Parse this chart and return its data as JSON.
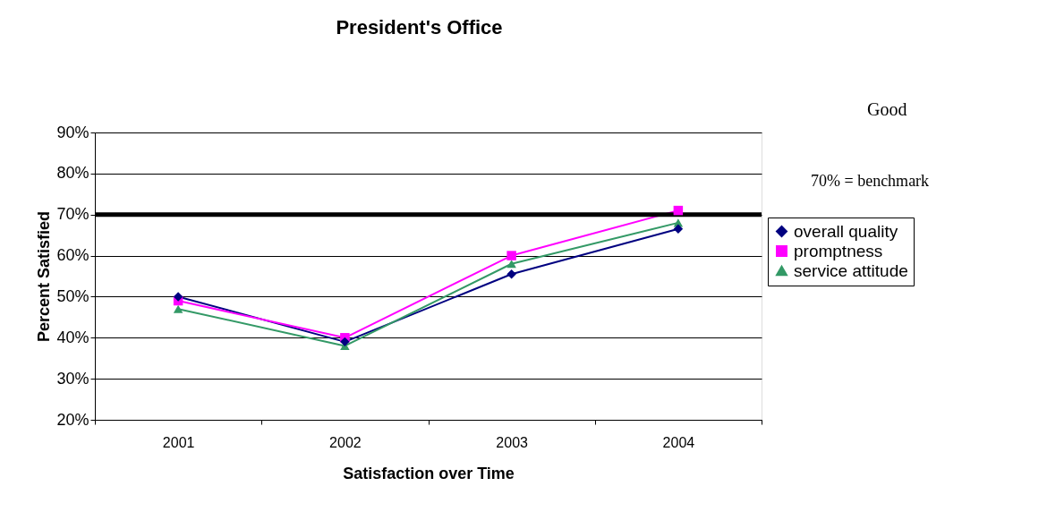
{
  "chart_data": {
    "type": "line",
    "title": "President's Office",
    "xlabel": "Satisfaction over Time",
    "ylabel": "Percent Satisfied",
    "categories": [
      "2001",
      "2002",
      "2003",
      "2004"
    ],
    "series": [
      {
        "name": "overall quality",
        "color": "#000080",
        "marker": "diamond",
        "values": [
          50,
          39,
          55.5,
          66.5
        ]
      },
      {
        "name": "promptness",
        "color": "#ff00ff",
        "marker": "square",
        "values": [
          49,
          40,
          60,
          71
        ]
      },
      {
        "name": "service attitude",
        "color": "#339966",
        "marker": "triangle",
        "values": [
          47,
          38,
          58,
          68
        ]
      }
    ],
    "ylim": [
      20,
      90
    ],
    "yticks": [
      {
        "value": 20,
        "label": "20%"
      },
      {
        "value": 30,
        "label": "30%"
      },
      {
        "value": 40,
        "label": "40%"
      },
      {
        "value": 50,
        "label": "50%"
      },
      {
        "value": 60,
        "label": "60%"
      },
      {
        "value": 70,
        "label": "70%"
      },
      {
        "value": 80,
        "label": "80%"
      },
      {
        "value": 90,
        "label": "90%"
      }
    ],
    "ref_lines": [
      {
        "axis": "y",
        "value": 70,
        "color": "#000000"
      }
    ],
    "annotations": [
      "Good",
      "70% = benchmark"
    ],
    "grid": "y",
    "legend": "right"
  }
}
